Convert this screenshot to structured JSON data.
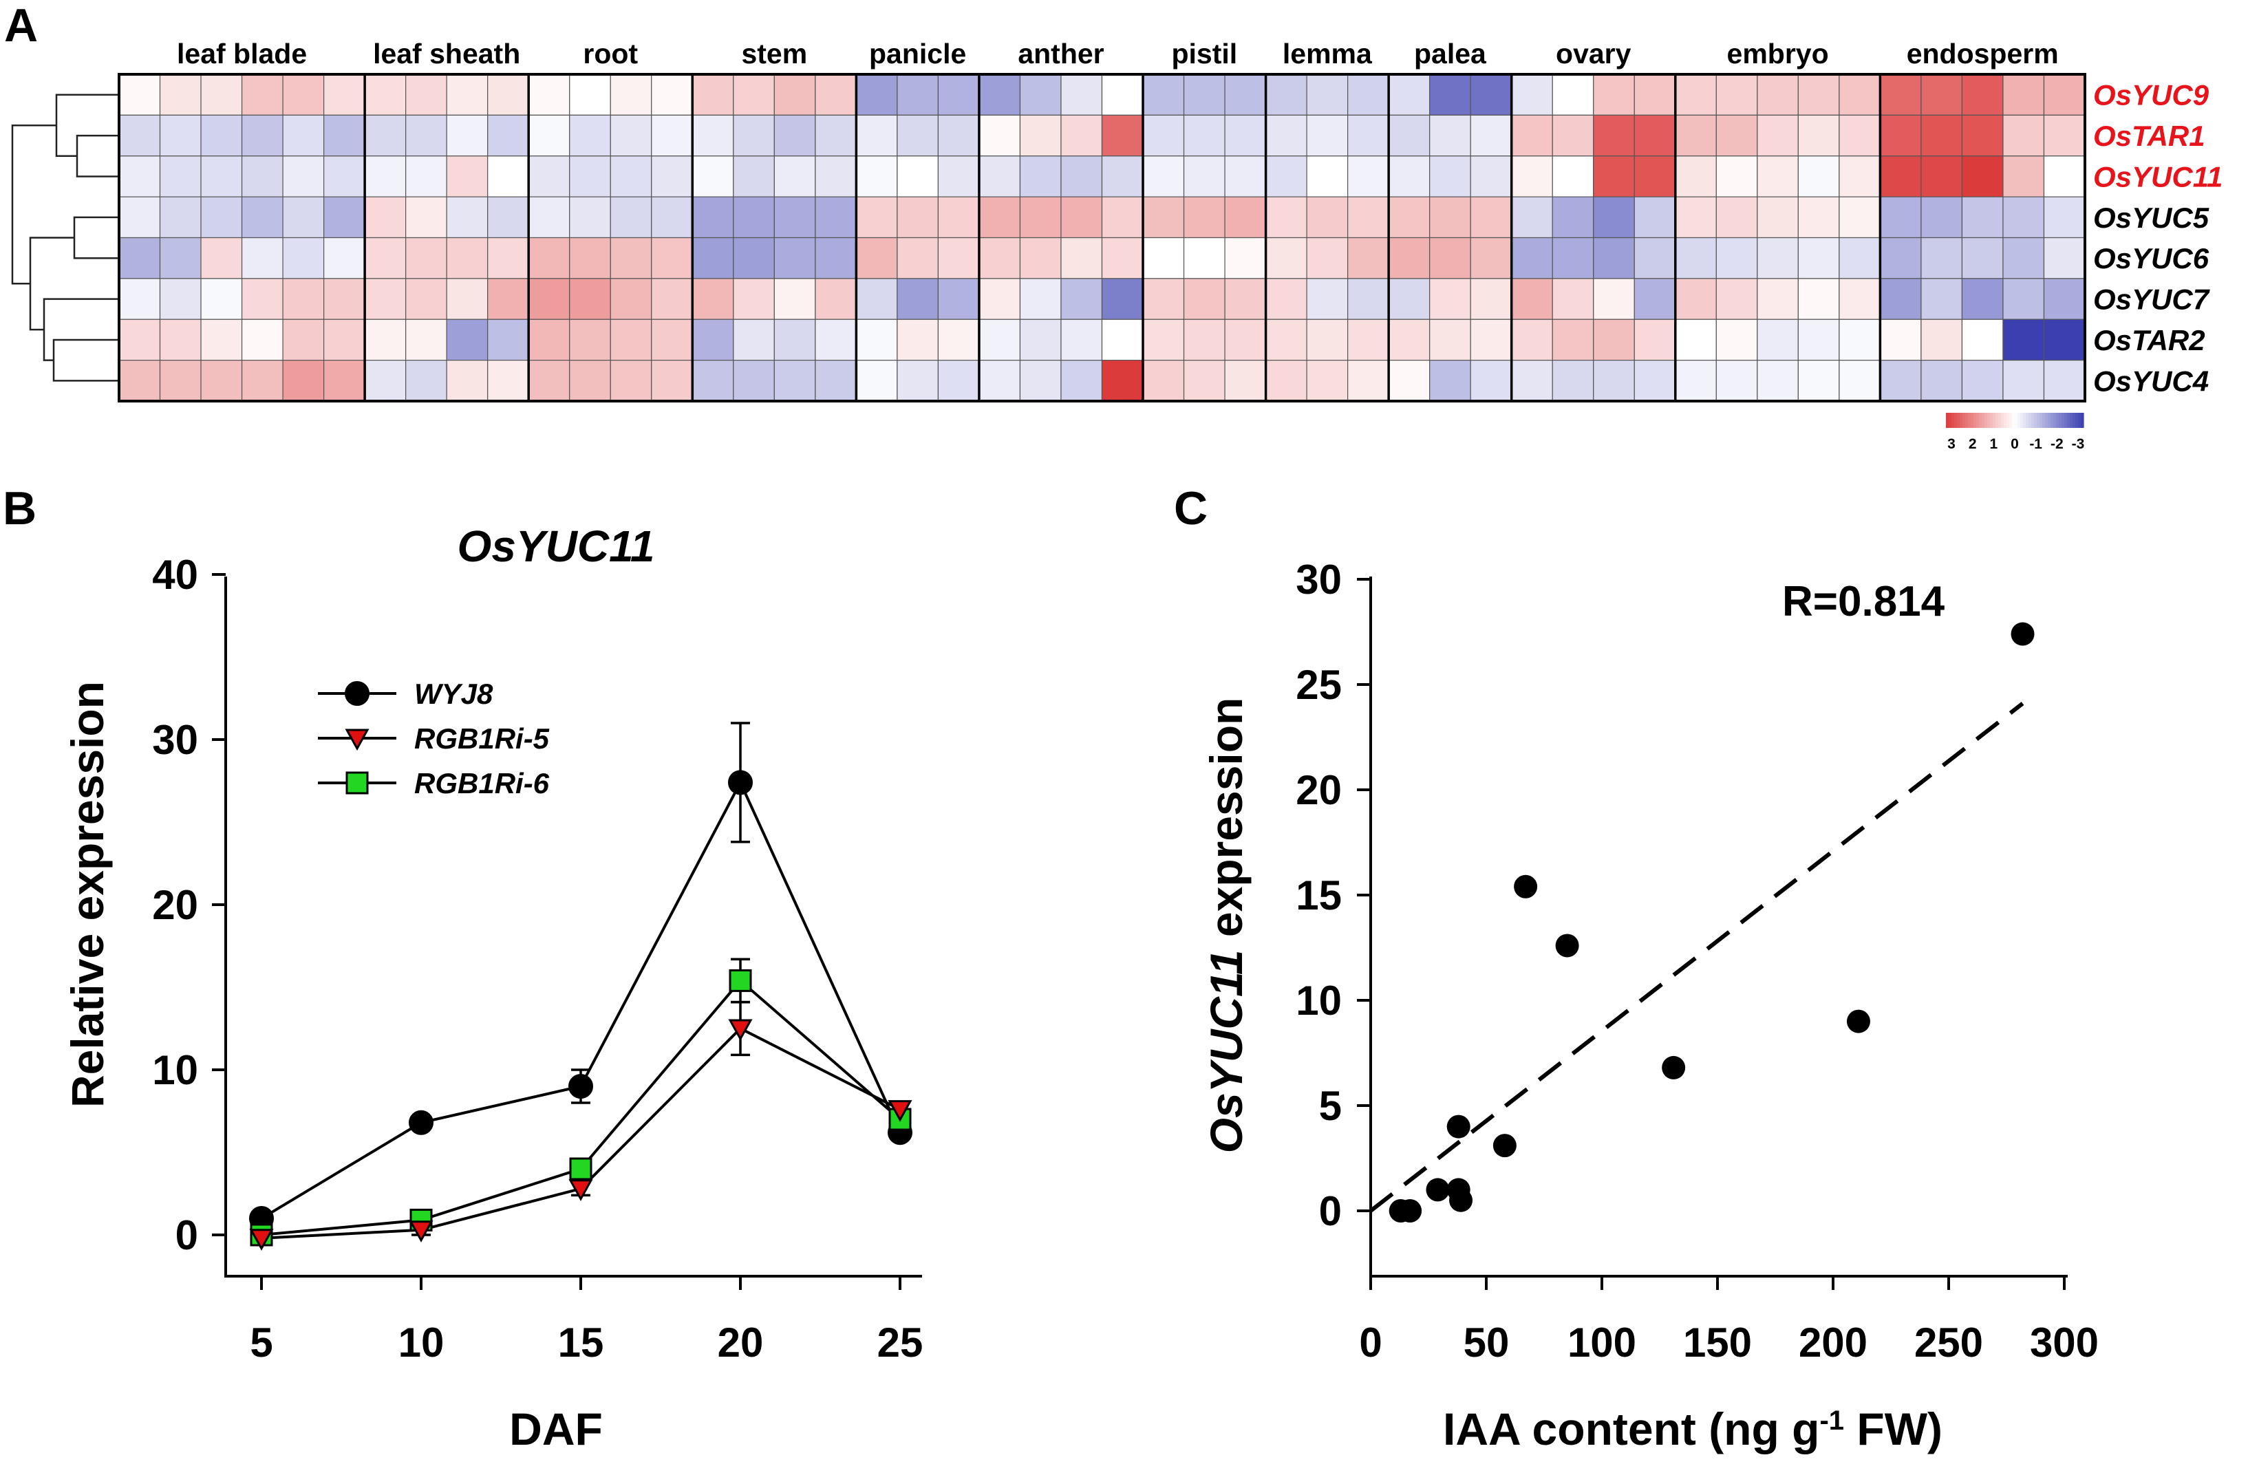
{
  "chart_data": [
    {
      "panel": "A",
      "type": "heatmap",
      "columns_per_tissue": [
        6,
        4,
        4,
        4,
        3,
        4,
        3,
        3,
        3,
        4,
        5,
        5
      ],
      "tissues": [
        "leaf blade",
        "leaf sheath",
        "root",
        "stem",
        "panicle",
        "anther",
        "pistil",
        "lemma",
        "palea",
        "ovary",
        "embryo",
        "endosperm"
      ],
      "genes": [
        {
          "name": "OsYUC9",
          "highlight": true
        },
        {
          "name": "OsTAR1",
          "highlight": true
        },
        {
          "name": "OsYUC11",
          "highlight": true
        },
        {
          "name": "OsYUC5",
          "highlight": false
        },
        {
          "name": "OsYUC6",
          "highlight": false
        },
        {
          "name": "OsYUC7",
          "highlight": false
        },
        {
          "name": "OsTAR2",
          "highlight": false
        },
        {
          "name": "OsYUC4",
          "highlight": false
        }
      ],
      "values": [
        [
          0.1,
          0.4,
          0.4,
          0.9,
          0.9,
          0.5,
          0.5,
          0.6,
          0.3,
          0.4,
          0.1,
          0.0,
          0.2,
          0.1,
          0.8,
          0.7,
          1.0,
          0.8,
          -1.5,
          -1.2,
          -1.2,
          -1.5,
          -1.0,
          -0.4,
          0.0,
          -1.0,
          -1.0,
          -1.0,
          -0.8,
          -0.6,
          -0.7,
          -0.5,
          -2.2,
          -2.2,
          -0.4,
          0.0,
          0.9,
          0.9,
          0.7,
          0.7,
          0.8,
          0.8,
          0.9,
          2.3,
          2.3,
          2.5,
          1.2,
          1.2
        ],
        [
          -0.6,
          -0.5,
          -0.7,
          -0.9,
          -0.5,
          -1.0,
          -0.6,
          -0.6,
          -0.2,
          -0.7,
          -0.1,
          -0.5,
          -0.4,
          -0.2,
          -0.3,
          -0.6,
          -0.9,
          -0.6,
          -0.3,
          -0.6,
          -0.6,
          0.1,
          0.4,
          0.6,
          2.3,
          -0.5,
          -0.5,
          -0.5,
          -0.4,
          -0.3,
          -0.5,
          -0.6,
          -0.4,
          -0.3,
          0.9,
          0.8,
          2.5,
          2.5,
          1.0,
          1.0,
          0.6,
          0.4,
          0.6,
          2.5,
          2.6,
          2.6,
          0.8,
          0.7
        ],
        [
          -0.3,
          -0.5,
          -0.5,
          -0.6,
          -0.3,
          -0.5,
          -0.2,
          -0.2,
          0.6,
          0.0,
          -0.4,
          -0.5,
          -0.5,
          -0.4,
          -0.1,
          -0.6,
          -0.3,
          -0.4,
          -0.1,
          0.0,
          -0.4,
          -0.4,
          -0.7,
          -0.8,
          -0.6,
          -0.2,
          -0.3,
          -0.3,
          -0.5,
          0.0,
          -0.2,
          -0.3,
          -0.5,
          -0.4,
          0.2,
          0.0,
          2.6,
          2.6,
          0.4,
          0.1,
          0.3,
          -0.1,
          0.3,
          2.8,
          2.8,
          3.0,
          1.0,
          0.0
        ],
        [
          -0.3,
          -0.6,
          -0.7,
          -1.0,
          -0.6,
          -1.2,
          0.6,
          0.3,
          -0.4,
          -0.6,
          -0.3,
          -0.4,
          -0.6,
          -0.6,
          -1.4,
          -1.4,
          -1.3,
          -1.3,
          0.7,
          0.8,
          0.7,
          1.2,
          1.2,
          1.2,
          0.7,
          1.0,
          1.1,
          1.2,
          0.6,
          0.8,
          0.7,
          0.9,
          1.0,
          0.9,
          -0.6,
          -1.3,
          -1.8,
          -0.8,
          0.5,
          0.6,
          0.4,
          0.3,
          0.2,
          -1.2,
          -1.2,
          -0.9,
          -0.9,
          -0.5
        ],
        [
          -1.2,
          -1.0,
          0.6,
          -0.3,
          -0.5,
          -0.2,
          0.6,
          0.7,
          0.7,
          0.6,
          1.1,
          1.1,
          1.0,
          0.9,
          -1.5,
          -1.5,
          -1.3,
          -1.3,
          1.1,
          0.7,
          0.6,
          0.7,
          0.7,
          0.4,
          0.6,
          0.0,
          0.0,
          0.1,
          0.4,
          0.6,
          1.0,
          1.2,
          1.2,
          1.0,
          -1.3,
          -1.3,
          -1.5,
          -0.8,
          -0.6,
          -0.5,
          -0.4,
          -0.3,
          -0.5,
          -1.2,
          -0.8,
          -0.8,
          -1.0,
          -0.4
        ],
        [
          -0.2,
          -0.4,
          -0.1,
          0.6,
          0.8,
          0.8,
          0.6,
          0.7,
          0.4,
          1.2,
          1.5,
          1.5,
          1.1,
          0.8,
          1.1,
          0.6,
          0.2,
          0.8,
          -0.6,
          -1.5,
          -1.2,
          0.3,
          -0.3,
          -1.0,
          -2.0,
          0.7,
          0.9,
          0.8,
          0.6,
          -0.4,
          -0.6,
          -0.6,
          0.5,
          0.4,
          1.2,
          0.6,
          0.2,
          -1.2,
          0.8,
          0.6,
          0.3,
          0.1,
          0.3,
          -1.5,
          -0.8,
          -1.6,
          -1.0,
          -1.3
        ],
        [
          0.6,
          0.6,
          0.3,
          0.1,
          0.8,
          0.7,
          0.2,
          0.2,
          -1.5,
          -1.0,
          1.1,
          1.0,
          0.9,
          0.8,
          -1.2,
          -0.4,
          -0.6,
          -0.3,
          -0.1,
          0.3,
          0.2,
          -0.2,
          -0.4,
          -0.3,
          0.0,
          0.5,
          0.6,
          0.6,
          0.5,
          0.4,
          0.5,
          0.5,
          0.4,
          0.3,
          0.6,
          0.9,
          1.0,
          0.6,
          0.0,
          0.1,
          -0.3,
          -0.2,
          -0.1,
          0.1,
          0.4,
          0.0,
          -3.2,
          -3.2
        ],
        [
          1.0,
          1.0,
          1.0,
          1.0,
          1.5,
          1.3,
          -0.4,
          -0.6,
          0.4,
          0.3,
          1.0,
          1.0,
          0.9,
          0.8,
          -0.9,
          -0.9,
          -0.8,
          -0.8,
          -0.1,
          -0.4,
          -0.5,
          -0.3,
          -0.4,
          -0.7,
          3.0,
          0.7,
          0.6,
          0.4,
          0.6,
          0.5,
          0.3,
          0.1,
          -1.0,
          -0.5,
          -0.4,
          -0.6,
          -0.6,
          -0.5,
          -0.2,
          -0.2,
          -0.2,
          -0.1,
          -0.1,
          -0.8,
          -0.8,
          -0.7,
          -0.5,
          -0.5
        ]
      ],
      "color_scale": {
        "min": -3,
        "max": 3,
        "low_color": "#3b3fb0",
        "mid_color": "#ffffff",
        "high_color": "#dc3b3b",
        "tick_labels": [
          "3",
          "2",
          "1",
          "0",
          "-1",
          "-2",
          "-3"
        ]
      },
      "highlight_color": "#e8141b"
    },
    {
      "panel": "B",
      "type": "line",
      "title": "OsYUC11",
      "xlabel": "DAF",
      "ylabel": "Relative expression",
      "x": [
        5,
        10,
        15,
        20,
        25
      ],
      "xticks": [
        "5",
        "10",
        "15",
        "20",
        "25"
      ],
      "yticks": [
        "0",
        "10",
        "20",
        "30",
        "40"
      ],
      "ylim": [
        -2.5,
        40
      ],
      "series": [
        {
          "name": "WYJ8",
          "marker": "circle",
          "color": "#000000",
          "values": [
            1.0,
            6.8,
            9.0,
            27.4,
            6.2
          ],
          "errors": [
            0.3,
            0.3,
            1.0,
            3.6,
            0.4
          ]
        },
        {
          "name": "RGB1Ri-5",
          "marker": "triangle-down",
          "color": "#e01010",
          "values": [
            -0.2,
            0.3,
            2.8,
            12.5,
            7.6
          ],
          "errors": [
            0.2,
            0.3,
            0.4,
            1.6,
            0.4
          ]
        },
        {
          "name": "RGB1Ri-6",
          "marker": "square",
          "color": "#22d622",
          "values": [
            0.0,
            0.9,
            4.0,
            15.4,
            7.0
          ],
          "errors": [
            0.2,
            0.3,
            0.4,
            1.3,
            0.4
          ]
        }
      ],
      "legend_position": "top-left"
    },
    {
      "panel": "C",
      "type": "scatter",
      "ylabel_italic": "OsYUC11",
      "ylabel_rest": " expression",
      "xlabel_pre": "IAA content (ng g",
      "xlabel_sup": "-1",
      "xlabel_post": " FW)",
      "xticks": [
        "0",
        "50",
        "100",
        "150",
        "200",
        "250",
        "300"
      ],
      "yticks": [
        "0",
        "5",
        "10",
        "15",
        "20",
        "25",
        "30"
      ],
      "xlim": [
        0,
        300
      ],
      "ylim": [
        -3,
        30
      ],
      "annotation": "R=0.814",
      "points": [
        [
          13,
          0.0
        ],
        [
          17,
          0.0
        ],
        [
          29,
          1.0
        ],
        [
          38,
          4.0
        ],
        [
          38,
          1.0
        ],
        [
          39,
          0.5
        ],
        [
          58,
          3.1
        ],
        [
          67,
          15.4
        ],
        [
          85,
          12.6
        ],
        [
          131,
          6.8
        ],
        [
          211,
          9.0
        ],
        [
          282,
          27.4
        ]
      ],
      "fit_line": {
        "x": [
          0,
          282
        ],
        "y": [
          0.0,
          24.1
        ],
        "style": "dashed"
      }
    }
  ]
}
